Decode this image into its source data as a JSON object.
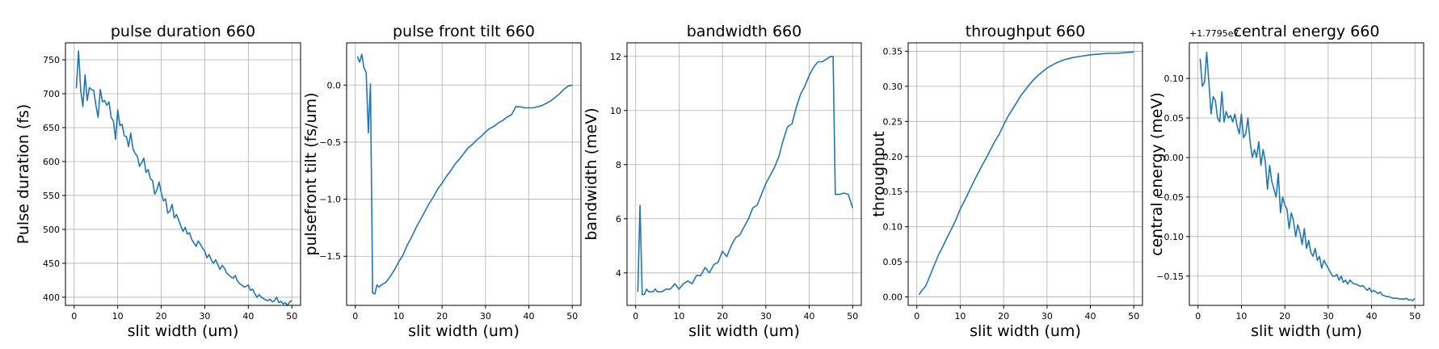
{
  "style": {
    "line_color": "#1f77b4",
    "grid": true
  },
  "chart_data": [
    {
      "type": "line",
      "title": "pulse duration 660",
      "xlabel": "slit width (um)",
      "ylabel": "Pulse duration (fs)",
      "xlim": [
        -2,
        52
      ],
      "ylim": [
        388,
        775
      ],
      "xticks": [
        0,
        10,
        20,
        30,
        40,
        50
      ],
      "yticks": [
        400,
        450,
        500,
        550,
        600,
        650,
        700,
        750
      ],
      "x": [
        0.5,
        1,
        1.5,
        2,
        2.5,
        3,
        3.5,
        4,
        4.5,
        5,
        5.5,
        6,
        6.5,
        7,
        7.5,
        8,
        8.5,
        9,
        9.5,
        10,
        10.5,
        11,
        11.5,
        12,
        12.5,
        13,
        13.5,
        14,
        14.5,
        15,
        15.5,
        16,
        16.5,
        17,
        17.5,
        18,
        18.5,
        19,
        19.5,
        20,
        20.5,
        21,
        21.5,
        22,
        22.5,
        23,
        23.5,
        24,
        24.5,
        25,
        25.5,
        26,
        26.5,
        27,
        27.5,
        28,
        28.5,
        29,
        29.5,
        30,
        30.5,
        31,
        31.5,
        32,
        32.5,
        33,
        33.5,
        34,
        34.5,
        35,
        35.5,
        36,
        36.5,
        37,
        37.5,
        38,
        38.5,
        39,
        39.5,
        40,
        40.5,
        41,
        41.5,
        42,
        42.5,
        43,
        43.5,
        44,
        44.5,
        45,
        45.5,
        46,
        46.5,
        47,
        47.5,
        48,
        48.5,
        49,
        49.5,
        50
      ],
      "y": [
        708,
        763,
        705,
        681,
        728,
        690,
        709,
        706,
        705,
        683,
        665,
        706,
        688,
        690,
        683,
        688,
        665,
        660,
        633,
        676,
        653,
        655,
        638,
        637,
        622,
        642,
        619,
        612,
        608,
        593,
        598,
        605,
        584,
        588,
        575,
        572,
        552,
        558,
        570,
        554,
        542,
        545,
        524,
        527,
        537,
        517,
        522,
        514,
        505,
        497,
        503,
        493,
        495,
        485,
        480,
        475,
        483,
        478,
        472,
        468,
        458,
        463,
        455,
        450,
        455,
        448,
        441,
        447,
        443,
        436,
        433,
        430,
        428,
        432,
        424,
        420,
        418,
        415,
        416,
        418,
        410,
        412,
        405,
        400,
        404,
        400,
        398,
        396,
        395,
        397,
        393,
        395,
        400,
        392,
        394,
        390,
        392,
        388,
        393,
        395
      ]
    },
    {
      "type": "line",
      "title": "pulse front tilt 660",
      "xlabel": "slit width (um)",
      "ylabel": "pulsefront tilt (fs/um)",
      "xlim": [
        -2,
        52
      ],
      "ylim": [
        -1.93,
        0.37
      ],
      "xticks": [
        0,
        10,
        20,
        30,
        40,
        50
      ],
      "yticks": [
        0.0,
        -0.5,
        -1.0,
        -1.5
      ],
      "ytick_labels": [
        "0.0",
        "−0.5",
        "−1.0",
        "−1.5"
      ],
      "x": [
        0.5,
        1,
        1.5,
        2,
        2.5,
        3,
        3.5,
        4,
        4.5,
        5,
        5.5,
        6,
        7,
        8,
        9,
        10,
        11,
        12,
        13,
        14,
        15,
        16,
        17,
        18,
        19,
        20,
        21,
        22,
        23,
        24,
        25,
        26,
        27,
        28,
        29,
        30,
        31,
        32,
        33,
        34,
        35,
        36,
        37,
        38,
        39,
        40,
        41,
        42,
        43,
        44,
        45,
        46,
        47,
        48,
        49,
        50
      ],
      "y": [
        0.25,
        0.2,
        0.27,
        0.15,
        0.11,
        -0.42,
        0.01,
        -1.82,
        -1.83,
        -1.75,
        -1.77,
        -1.75,
        -1.73,
        -1.68,
        -1.62,
        -1.55,
        -1.49,
        -1.4,
        -1.33,
        -1.25,
        -1.18,
        -1.11,
        -1.04,
        -0.98,
        -0.91,
        -0.86,
        -0.8,
        -0.75,
        -0.69,
        -0.65,
        -0.6,
        -0.55,
        -0.52,
        -0.48,
        -0.45,
        -0.41,
        -0.38,
        -0.36,
        -0.33,
        -0.31,
        -0.28,
        -0.26,
        -0.19,
        -0.19,
        -0.2,
        -0.2,
        -0.2,
        -0.19,
        -0.18,
        -0.16,
        -0.14,
        -0.11,
        -0.08,
        -0.04,
        -0.01,
        0.0
      ]
    },
    {
      "type": "line",
      "title": "bandwidth 660",
      "xlabel": "slit width (um)",
      "ylabel": "bandwidth (meV)",
      "xlim": [
        -2,
        52
      ],
      "ylim": [
        2.8,
        12.5
      ],
      "xticks": [
        0,
        10,
        20,
        30,
        40,
        50
      ],
      "yticks": [
        4,
        6,
        8,
        10,
        12
      ],
      "x": [
        0.5,
        1,
        1.5,
        2,
        2.5,
        3,
        3.5,
        4,
        4.5,
        5,
        6,
        7,
        8,
        9,
        10,
        11,
        12,
        13,
        14,
        15,
        16,
        17,
        18,
        19,
        20,
        21,
        22,
        23,
        24,
        25,
        26,
        27,
        28,
        29,
        30,
        31,
        32,
        33,
        34,
        35,
        36,
        37,
        38,
        39,
        40,
        41,
        42,
        43,
        44,
        45,
        45.5,
        46,
        47,
        48,
        49,
        50
      ],
      "y": [
        3.3,
        6.5,
        3.2,
        3.2,
        3.4,
        3.3,
        3.3,
        3.3,
        3.4,
        3.3,
        3.3,
        3.4,
        3.4,
        3.6,
        3.4,
        3.6,
        3.7,
        3.6,
        3.9,
        3.9,
        4.2,
        4.0,
        4.3,
        4.4,
        4.8,
        4.6,
        5.0,
        5.3,
        5.4,
        5.7,
        6.0,
        6.4,
        6.5,
        6.9,
        7.3,
        7.6,
        7.9,
        8.3,
        8.9,
        9.4,
        9.5,
        10.1,
        10.6,
        10.9,
        11.3,
        11.6,
        11.8,
        11.8,
        11.9,
        12.0,
        12.0,
        6.9,
        6.9,
        6.95,
        6.9,
        6.4
      ]
    },
    {
      "type": "line",
      "title": "throughput 660",
      "xlabel": "slit width (um)",
      "ylabel": "throughput",
      "xlim": [
        -2,
        52
      ],
      "ylim": [
        -0.012,
        0.362
      ],
      "xticks": [
        0,
        10,
        20,
        30,
        40,
        50
      ],
      "yticks": [
        0.0,
        0.05,
        0.1,
        0.15,
        0.2,
        0.25,
        0.3,
        0.35
      ],
      "ytick_labels": [
        "0.00",
        "0.05",
        "0.10",
        "0.15",
        "0.20",
        "0.25",
        "0.30",
        "0.35"
      ],
      "x": [
        0.5,
        1,
        2,
        3,
        4,
        5,
        6,
        7,
        8,
        9,
        10,
        11,
        12,
        13,
        14,
        15,
        16,
        17,
        18,
        19,
        20,
        21,
        22,
        23,
        24,
        25,
        26,
        27,
        28,
        29,
        30,
        32,
        34,
        36,
        38,
        40,
        42,
        44,
        46,
        48,
        50
      ],
      "y": [
        0.003,
        0.008,
        0.015,
        0.03,
        0.045,
        0.06,
        0.072,
        0.085,
        0.097,
        0.11,
        0.125,
        0.137,
        0.15,
        0.163,
        0.175,
        0.187,
        0.198,
        0.21,
        0.222,
        0.232,
        0.245,
        0.257,
        0.267,
        0.277,
        0.287,
        0.295,
        0.303,
        0.31,
        0.316,
        0.321,
        0.326,
        0.333,
        0.338,
        0.341,
        0.343,
        0.345,
        0.346,
        0.347,
        0.347,
        0.348,
        0.349
      ]
    },
    {
      "type": "line",
      "title": "central energy 660",
      "xlabel": "slit width (um)",
      "ylabel": "central energy (meV)",
      "offset_text": "+1.7795e7",
      "xlim": [
        -2,
        52
      ],
      "ylim": [
        -0.187,
        0.145
      ],
      "xticks": [
        0,
        10,
        20,
        30,
        40,
        50
      ],
      "yticks": [
        0.1,
        0.05,
        0.0,
        -0.05,
        -0.1,
        -0.15
      ],
      "ytick_labels": [
        "0.10",
        "0.05",
        "0.00",
        "−0.05",
        "−0.10",
        "−0.15"
      ],
      "x": [
        0.5,
        1,
        1.5,
        2,
        2.5,
        3,
        3.5,
        4,
        4.5,
        5,
        5.5,
        6,
        6.5,
        7,
        7.5,
        8,
        8.5,
        9,
        9.5,
        10,
        10.5,
        11,
        11.5,
        12,
        12.5,
        13,
        13.5,
        14,
        14.5,
        15,
        15.5,
        16,
        16.5,
        17,
        17.5,
        18,
        18.5,
        19,
        19.5,
        20,
        20.5,
        21,
        21.5,
        22,
        22.5,
        23,
        23.5,
        24,
        24.5,
        25,
        25.5,
        26,
        26.5,
        27,
        27.5,
        28,
        28.5,
        29,
        29.5,
        30,
        30.5,
        31,
        31.5,
        32,
        32.5,
        33,
        33.5,
        34,
        34.5,
        35,
        35.5,
        36,
        36.5,
        37,
        37.5,
        38,
        38.5,
        39,
        39.5,
        40,
        40.5,
        41,
        41.5,
        42,
        42.5,
        43,
        43.5,
        44,
        44.5,
        45,
        45.5,
        46,
        46.5,
        47,
        47.5,
        48,
        48.5,
        49,
        49.5,
        50
      ],
      "y": [
        0.125,
        0.09,
        0.095,
        0.133,
        0.095,
        0.055,
        0.077,
        0.072,
        0.05,
        0.045,
        0.083,
        0.045,
        0.058,
        0.05,
        0.053,
        0.045,
        0.055,
        0.04,
        0.03,
        0.055,
        0.025,
        0.03,
        0.05,
        0.02,
        0.0,
        0.01,
        0.0,
        0.02,
        -0.01,
        0.01,
        -0.005,
        -0.04,
        -0.01,
        -0.03,
        -0.04,
        -0.05,
        -0.02,
        -0.07,
        -0.05,
        -0.06,
        -0.065,
        -0.09,
        -0.07,
        -0.08,
        -0.1,
        -0.085,
        -0.095,
        -0.11,
        -0.09,
        -0.115,
        -0.105,
        -0.12,
        -0.125,
        -0.115,
        -0.13,
        -0.125,
        -0.14,
        -0.13,
        -0.135,
        -0.14,
        -0.145,
        -0.15,
        -0.15,
        -0.148,
        -0.155,
        -0.15,
        -0.158,
        -0.155,
        -0.16,
        -0.155,
        -0.158,
        -0.16,
        -0.16,
        -0.162,
        -0.163,
        -0.162,
        -0.165,
        -0.168,
        -0.165,
        -0.17,
        -0.168,
        -0.17,
        -0.172,
        -0.17,
        -0.174,
        -0.175,
        -0.176,
        -0.176,
        -0.177,
        -0.178,
        -0.178,
        -0.178,
        -0.179,
        -0.179,
        -0.179,
        -0.178,
        -0.18,
        -0.18,
        -0.181,
        -0.178
      ]
    }
  ]
}
